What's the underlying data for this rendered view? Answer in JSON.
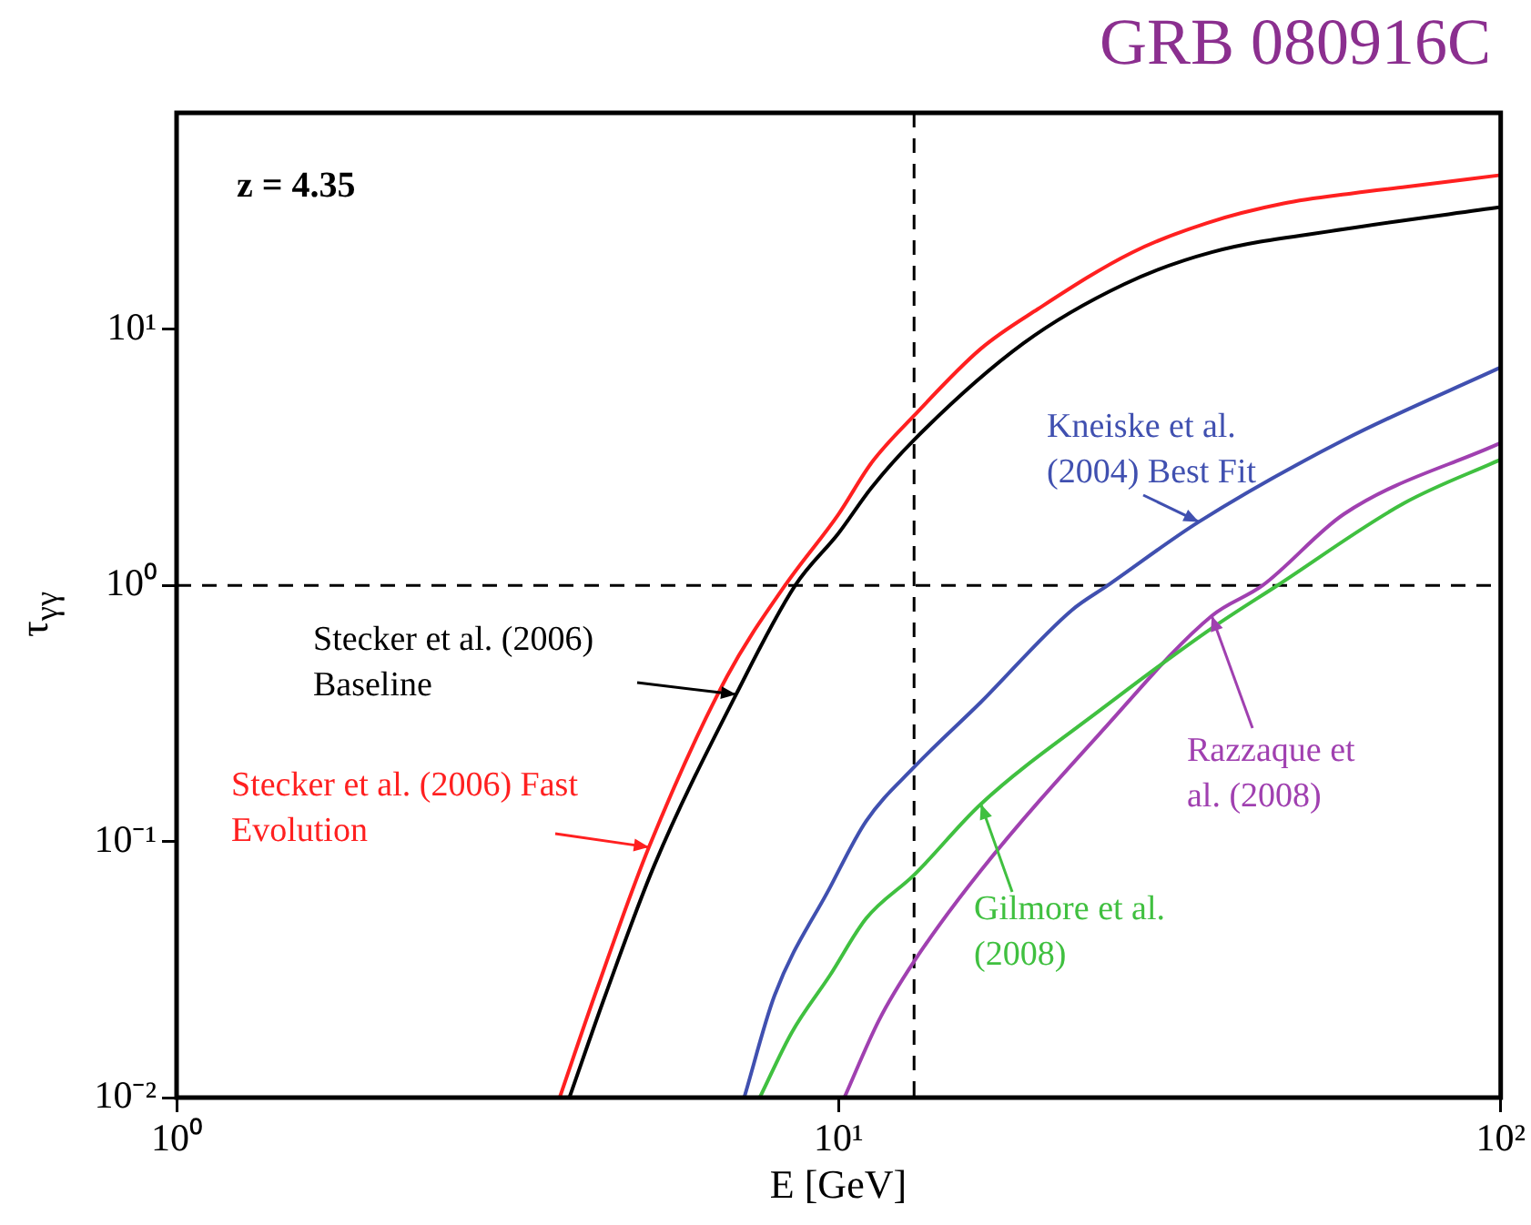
{
  "chart_data": {
    "type": "line",
    "title": "GRB 080916C",
    "xlabel": "E [GeV]",
    "ylabel": "τ$_{γγ}$",
    "log": "xy",
    "grid": false,
    "legend": false,
    "marker": "none",
    "line_style": "solid",
    "xlim": [
      1,
      100
    ],
    "xticks": [
      {
        "value": 1,
        "label": "10⁰"
      },
      {
        "value": 10,
        "label": "10¹"
      },
      {
        "value": 100,
        "label": "10²"
      }
    ],
    "ylim": [
      0.01,
      70
    ],
    "yticks": [
      {
        "value": 0.01,
        "label": "10⁻²"
      },
      {
        "value": 0.1,
        "label": "10⁻¹"
      },
      {
        "value": 1,
        "label": "10⁰"
      },
      {
        "value": 10,
        "label": "10¹"
      }
    ],
    "annotations": [
      "z = 4.35"
    ],
    "ref_lines": [
      {
        "axis": "y",
        "value": 1,
        "color": "#000000",
        "line_style": "dashed"
      },
      {
        "axis": "x",
        "value": 13,
        "color": "#000000",
        "line_style": "dashed"
      }
    ],
    "series": [
      {
        "name": "Stecker et al. (2006) Fast Evolution",
        "color": "#ff2020",
        "x": [
          3.79,
          4.28,
          5.17,
          6.78,
          8.3,
          10,
          11.2,
          13,
          16.4,
          20,
          27.7,
          36,
          47,
          60,
          72,
          100
        ],
        "values": [
          0.01,
          0.025,
          0.095,
          0.44,
          1,
          1.9,
          3.0,
          4.6,
          8.4,
          12,
          19.9,
          26,
          31,
          34,
          36,
          40
        ]
      },
      {
        "name": "Stecker et al. (2006) Baseline",
        "color": "#000000",
        "x": [
          3.92,
          4.44,
          5.27,
          7.0,
          8.6,
          10,
          11.2,
          13,
          19,
          27,
          36.6,
          58,
          100
        ],
        "values": [
          0.01,
          0.025,
          0.081,
          0.375,
          1,
          1.6,
          2.4,
          3.7,
          8.8,
          15,
          20,
          24.6,
          30
        ]
      },
      {
        "name": "Kneiske et al. (2004) Best Fit",
        "color": "#4050b0",
        "x": [
          7.2,
          8,
          9.7,
          11,
          13,
          16.4,
          22.5,
          25.5,
          35,
          58,
          100
        ],
        "values": [
          0.01,
          0.025,
          0.066,
          0.12,
          0.195,
          0.35,
          0.8,
          1,
          1.77,
          3.7,
          7.1
        ]
      },
      {
        "name": "Gilmore et al. (2008)",
        "color": "#40c040",
        "x": [
          7.6,
          8.5,
          9.7,
          11,
          13,
          16.4,
          25,
          36.6,
          46,
          71.6,
          100
        ],
        "values": [
          0.01,
          0.018,
          0.03,
          0.05,
          0.074,
          0.14,
          0.33,
          0.68,
          1,
          2.1,
          3.1
        ]
      },
      {
        "name": "Razzaque et al. (2008)",
        "color": "#a040b0",
        "x": [
          10.2,
          11.5,
          13,
          16.4,
          25,
          36.6,
          43.7,
          58,
          100
        ],
        "values": [
          0.01,
          0.02,
          0.034,
          0.077,
          0.27,
          0.76,
          1,
          1.9,
          3.6
        ]
      }
    ]
  }
}
